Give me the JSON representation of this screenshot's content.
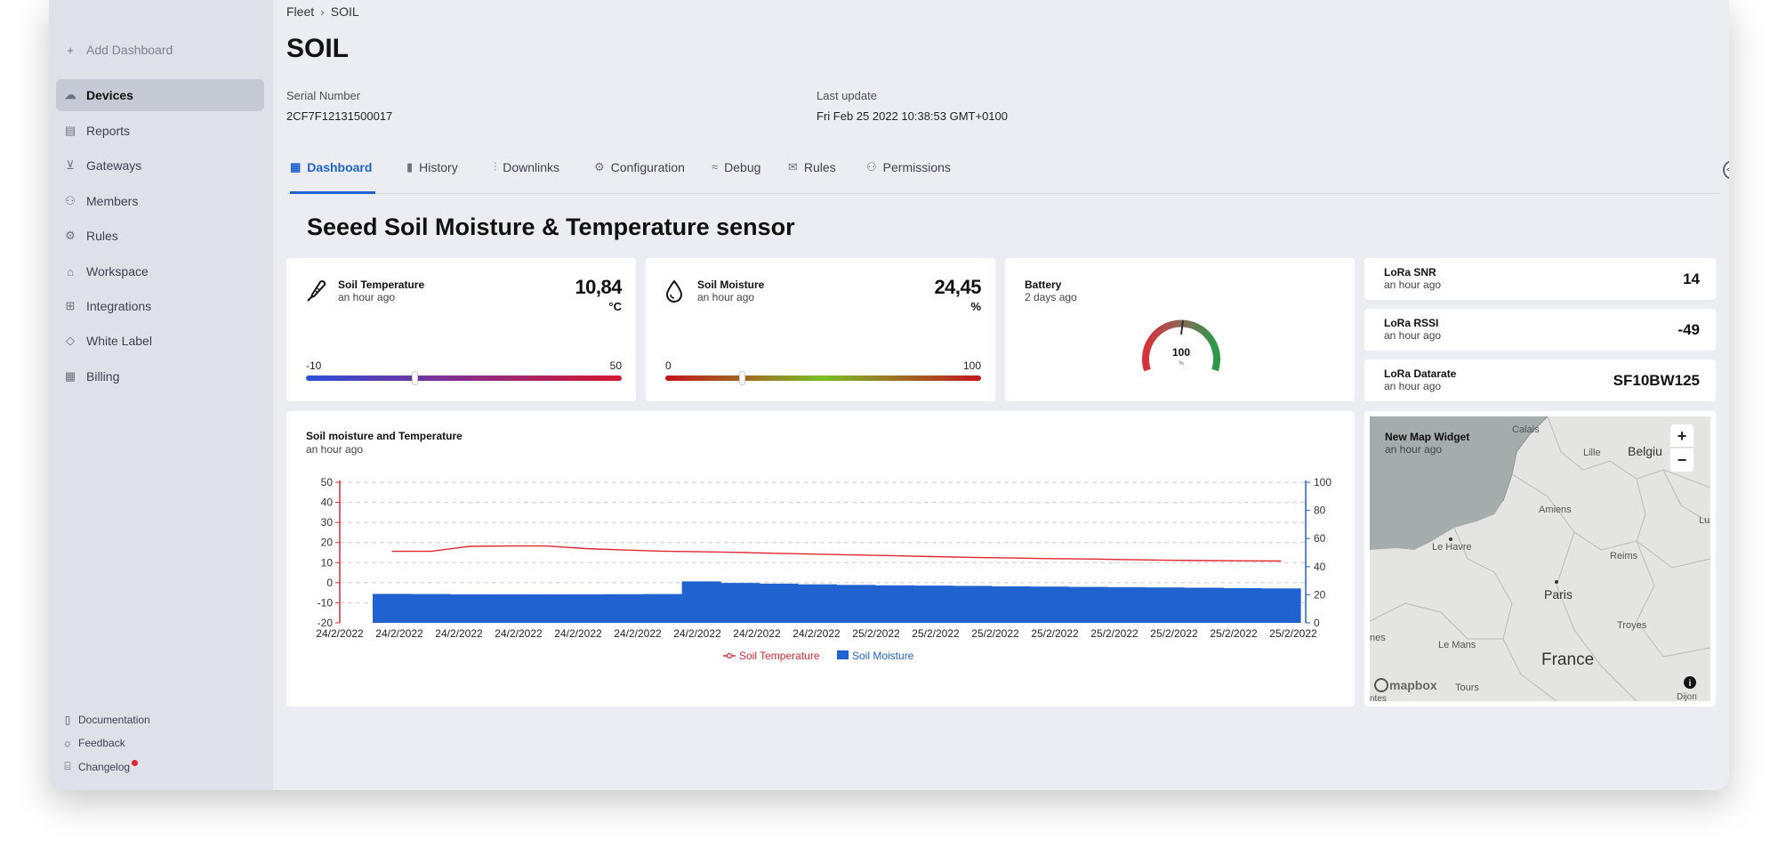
{
  "sidebar": {
    "add_dashboard": "Add Dashboard",
    "items": [
      {
        "label": "Devices",
        "icon": "cloud-icon"
      },
      {
        "label": "Reports",
        "icon": "document-icon"
      },
      {
        "label": "Gateways",
        "icon": "antenna-icon"
      },
      {
        "label": "Members",
        "icon": "people-icon"
      },
      {
        "label": "Rules",
        "icon": "rules-icon"
      },
      {
        "label": "Workspace",
        "icon": "home-icon"
      },
      {
        "label": "Integrations",
        "icon": "plus-square-icon"
      },
      {
        "label": "White Label",
        "icon": "tag-icon"
      },
      {
        "label": "Billing",
        "icon": "billing-icon"
      }
    ],
    "footer": {
      "documentation": "Documentation",
      "feedback": "Feedback",
      "changelog": "Changelog"
    }
  },
  "breadcrumb": {
    "parent": "Fleet",
    "current": "SOIL"
  },
  "page_title": "SOIL",
  "meta": {
    "serial_label": "Serial Number",
    "serial_value": "2CF7F12131500017",
    "update_label": "Last update",
    "update_value": "Fri Feb 25 2022 10:38:53 GMT+0100"
  },
  "tabs": [
    {
      "label": "Dashboard",
      "icon": "grid-icon",
      "active": true
    },
    {
      "label": "History",
      "icon": "bar-chart-icon"
    },
    {
      "label": "Downlinks",
      "icon": "sliders-icon"
    },
    {
      "label": "Configuration",
      "icon": "gear-icon"
    },
    {
      "label": "Debug",
      "icon": "signal-icon"
    },
    {
      "label": "Rules",
      "icon": "chat-icon"
    },
    {
      "label": "Permissions",
      "icon": "people-icon"
    }
  ],
  "dashboard_title": "Seeed Soil Moisture & Temperature sensor",
  "widgets": {
    "soil_temperature": {
      "title": "Soil Temperature",
      "subtitle": "an hour ago",
      "value": "10,84",
      "unit": "°C",
      "min": "-10",
      "max": "50",
      "fraction": 0.3473,
      "colors": [
        "#2b4fd8",
        "#8a2d8a",
        "#d4172b"
      ]
    },
    "soil_moisture": {
      "title": "Soil Moisture",
      "subtitle": "an hour ago",
      "value": "24,45",
      "unit": "%",
      "min": "0",
      "max": "100",
      "fraction": 0.2445,
      "colors": [
        "#c3161c",
        "#7bbf27",
        "#c3161c"
      ]
    },
    "battery": {
      "title": "Battery",
      "subtitle": "2 days ago",
      "value": "100",
      "unit": "%",
      "fraction": 1.0
    },
    "lora_snr": {
      "title": "LoRa SNR",
      "subtitle": "an hour ago",
      "value": "14"
    },
    "lora_rssi": {
      "title": "LoRa RSSI",
      "subtitle": "an hour ago",
      "value": "-49"
    },
    "lora_datarate": {
      "title": "LoRa Datarate",
      "subtitle": "an hour ago",
      "value": "SF10BW125"
    },
    "chart": {
      "title": "Soil moisture and Temperature",
      "subtitle": "an hour ago"
    },
    "map": {
      "title": "New Map Widget",
      "subtitle": "an hour ago",
      "labels": [
        "Calais",
        "Lille",
        "Belgiu",
        "Amiens",
        "Le Havre",
        "Reims",
        "Lu",
        "Paris",
        "Troyes",
        "Le Mans",
        "France",
        "Tours",
        "nes",
        "ntes",
        "Dijon"
      ],
      "attribution": "mapbox"
    }
  },
  "chart_data": {
    "type": "bar",
    "title": "",
    "x_tick_labels": [
      "24/2/2022",
      "24/2/2022",
      "24/2/2022",
      "24/2/2022",
      "24/2/2022",
      "24/2/2022",
      "24/2/2022",
      "24/2/2022",
      "24/2/2022",
      "25/2/2022",
      "25/2/2022",
      "25/2/2022",
      "25/2/2022",
      "25/2/2022",
      "25/2/2022",
      "25/2/2022",
      "25/2/2022"
    ],
    "y_left": {
      "ylim": [
        -20,
        50
      ],
      "ticks": [
        50,
        40,
        30,
        20,
        10,
        0,
        -10,
        -20
      ]
    },
    "y_right": {
      "ylim": [
        0,
        100
      ],
      "ticks": [
        100,
        80,
        60,
        40,
        20,
        0
      ]
    },
    "grid": true,
    "legend_position": "bottom",
    "series": [
      {
        "name": "Soil Temperature",
        "type": "line",
        "axis": "left",
        "color": "#e0262f",
        "values": [
          15.6,
          15.6,
          18.1,
          18.3,
          18.3,
          17.0,
          16.3,
          15.7,
          15.4,
          15.1,
          14.6,
          14.2,
          13.8,
          13.4,
          13.0,
          12.6,
          12.3,
          12.0,
          11.8,
          11.5,
          11.2,
          11.0,
          10.9,
          10.8
        ]
      },
      {
        "name": "Soil Moisture",
        "type": "bar",
        "axis": "right",
        "color": "#1f62d0",
        "values": [
          20.6,
          20.5,
          20.3,
          20.3,
          20.3,
          20.3,
          20.4,
          20.5,
          29.5,
          28.4,
          27.9,
          27.4,
          27.0,
          26.7,
          26.5,
          26.3,
          26.0,
          25.8,
          25.6,
          25.4,
          25.2,
          25.0,
          24.7,
          24.5
        ]
      }
    ]
  }
}
